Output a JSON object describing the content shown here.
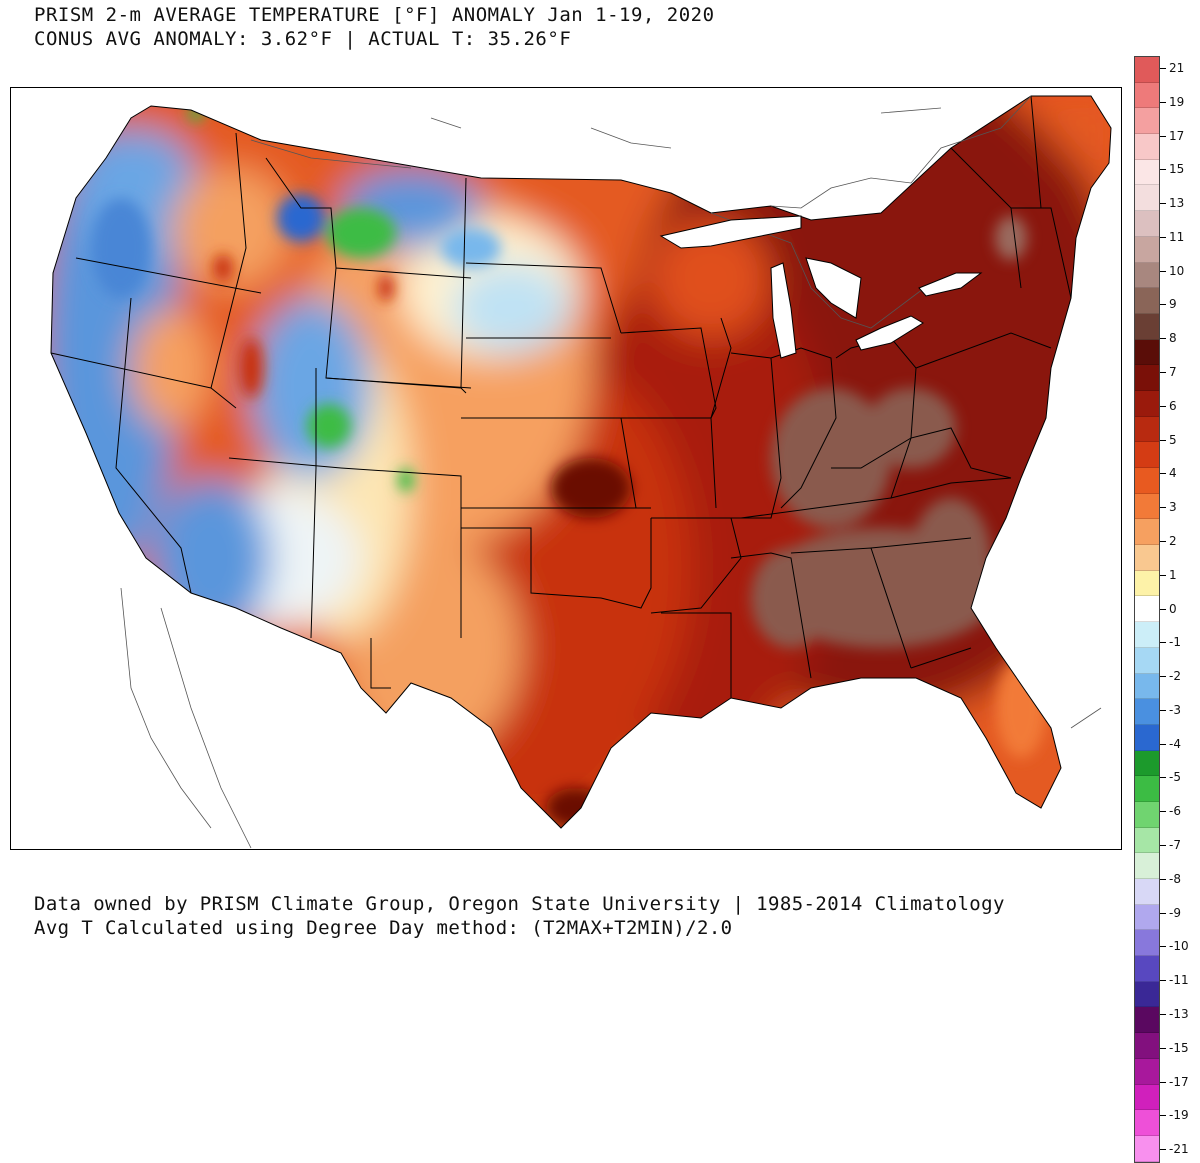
{
  "title": {
    "line1": "PRISM 2-m AVERAGE TEMPERATURE [°F] ANOMALY Jan 1-19, 2020",
    "line2": "CONUS AVG ANOMALY: 3.62°F | ACTUAL T: 35.26°F"
  },
  "footer": {
    "line1": "Data owned by PRISM Climate Group, Oregon State University | 1985-2014 Climatology",
    "line2": "Avg T Calculated using Degree Day method: (T2MAX+T2MIN)/2.0"
  },
  "legend": {
    "colors": [
      "#e05a5a",
      "#ee7a7a",
      "#f4a0a0",
      "#f8c8c8",
      "#fbe6e6",
      "#f3dede",
      "#dcc0c0",
      "#c8a6a0",
      "#a8877f",
      "#8a6558",
      "#6a3f34",
      "#5a0d08",
      "#7a1008",
      "#9a1a0c",
      "#b82a10",
      "#d43c14",
      "#e85a20",
      "#f27a38",
      "#f6a060",
      "#f9c890",
      "#fdf2a8",
      "#ffffff",
      "#cceef8",
      "#a6d8f4",
      "#78b8ec",
      "#4a90e0",
      "#2a68d0",
      "#1c9a2c",
      "#3cbc44",
      "#70d470",
      "#a6e6a6",
      "#d8f0d8",
      "#d8d8f6",
      "#b0a8ee",
      "#8878dc",
      "#5848c0",
      "#3a2896",
      "#5a0860",
      "#82107e",
      "#a8189c",
      "#d020bc",
      "#ee50d8",
      "#f890ee"
    ],
    "ticks": [
      "21",
      "19",
      "17",
      "15",
      "13",
      "11",
      "10",
      "9",
      "8",
      "7",
      "6",
      "5",
      "4",
      "3",
      "2",
      "1",
      "0",
      "-1",
      "-2",
      "-3",
      "-4",
      "-5",
      "-6",
      "-7",
      "-8",
      "-9",
      "-10",
      "-11",
      "-13",
      "-15",
      "-17",
      "-19",
      "-21"
    ]
  },
  "map": {
    "palette": {
      "cold_blue": "#5a96dc",
      "light_blue": "#bfe2f4",
      "near_zero": "#fff6d8",
      "light_orange": "#f9c08a",
      "orange": "#f08a4a",
      "red_orange": "#e0501e",
      "red": "#b8260e",
      "dark_red": "#8a1408",
      "brown": "#8a5a4e",
      "green": "#3cbc44"
    }
  }
}
